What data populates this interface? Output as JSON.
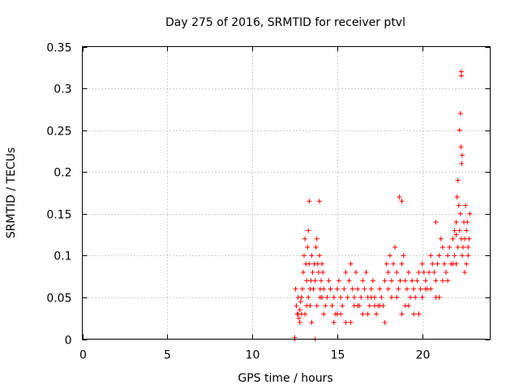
{
  "chart_data": {
    "type": "scatter",
    "title": "Day 275 of 2016, SRMTID for receiver ptvl",
    "xlabel": "GPS time / hours",
    "ylabel": "SRMTID / TECUs",
    "xlim": [
      0,
      24
    ],
    "ylim": [
      0,
      0.35
    ],
    "xticks": [
      0,
      5,
      10,
      15,
      20
    ],
    "xtick_labels": [
      "0",
      "5",
      "10",
      "15",
      "20"
    ],
    "yticks": [
      0,
      0.05,
      0.1,
      0.15,
      0.2,
      0.25,
      0.3,
      0.35
    ],
    "ytick_labels": [
      "0",
      "0.05",
      "0.1",
      "0.15",
      "0.2",
      "0.25",
      "0.3",
      "0.35"
    ],
    "grid": true,
    "marker": "+",
    "series": [
      {
        "name": "SRMTID",
        "color": "#ff0000",
        "x": [
          12.5,
          12.5,
          12.55,
          12.6,
          12.65,
          12.7,
          12.75,
          12.8,
          12.85,
          12.9,
          12.95,
          13.0,
          13.05,
          13.1,
          13.15,
          13.2,
          13.25,
          13.3,
          13.35,
          13.4,
          13.45,
          13.5,
          13.55,
          13.6,
          13.65,
          13.7,
          13.75,
          13.8,
          13.85,
          13.9,
          13.95,
          14.0,
          14.05,
          14.1,
          14.15,
          14.2,
          14.3,
          14.4,
          14.5,
          14.6,
          14.7,
          14.8,
          14.9,
          15.0,
          15.1,
          15.2,
          15.3,
          15.4,
          15.5,
          15.6,
          15.7,
          15.8,
          15.9,
          16.0,
          16.1,
          16.2,
          16.3,
          16.4,
          16.5,
          16.6,
          16.7,
          16.8,
          16.9,
          17.0,
          17.1,
          17.2,
          17.3,
          17.4,
          17.5,
          17.6,
          17.7,
          17.8,
          17.9,
          18.0,
          18.1,
          18.2,
          18.3,
          18.4,
          18.5,
          18.6,
          18.7,
          18.8,
          18.9,
          19.0,
          19.1,
          19.2,
          19.3,
          19.4,
          19.5,
          19.6,
          19.7,
          19.8,
          19.9,
          20.0,
          20.1,
          20.2,
          20.3,
          20.4,
          20.5,
          20.6,
          20.7,
          20.8,
          20.9,
          21.0,
          21.1,
          21.2,
          21.3,
          21.4,
          21.5,
          21.6,
          21.7,
          21.8,
          21.9,
          22.0,
          22.05,
          22.1,
          22.15,
          22.2,
          22.25,
          22.3,
          22.35,
          22.4,
          22.45,
          22.5,
          22.55,
          22.6,
          22.65,
          22.7,
          22.75,
          22.8,
          13.7,
          13.95,
          13.35,
          18.65,
          18.8,
          20.8,
          22.3,
          22.3,
          22.25,
          22.2,
          22.28,
          22.32,
          22.35,
          21.9,
          22.0,
          22.1,
          12.7,
          12.8,
          13.2,
          13.3,
          13.4,
          14.0,
          14.1,
          14.6,
          15.0,
          15.5,
          16.0,
          16.5,
          17.0,
          17.5,
          18.0,
          18.5,
          19.0,
          19.5,
          20.0,
          20.5,
          21.0,
          21.5,
          22.0,
          22.5,
          22.7,
          22.6,
          12.9,
          13.1,
          13.5,
          13.8,
          14.2,
          14.8,
          15.2,
          15.8,
          16.2,
          16.8,
          17.2,
          17.8,
          18.2,
          18.8,
          19.2,
          19.8,
          20.2,
          20.8,
          21.2,
          21.8
        ],
        "y": [
          0.0,
          0.002,
          0.06,
          0.04,
          0.03,
          0.05,
          0.025,
          0.035,
          0.045,
          0.03,
          0.06,
          0.08,
          0.1,
          0.12,
          0.09,
          0.07,
          0.11,
          0.13,
          0.09,
          0.06,
          0.07,
          0.1,
          0.08,
          0.06,
          0.09,
          0.07,
          0.11,
          0.12,
          0.09,
          0.08,
          0.1,
          0.06,
          0.07,
          0.05,
          0.08,
          0.06,
          0.04,
          0.05,
          0.07,
          0.06,
          0.04,
          0.05,
          0.03,
          0.06,
          0.07,
          0.05,
          0.04,
          0.06,
          0.08,
          0.05,
          0.07,
          0.09,
          0.06,
          0.05,
          0.08,
          0.06,
          0.04,
          0.05,
          0.07,
          0.06,
          0.08,
          0.05,
          0.04,
          0.06,
          0.07,
          0.05,
          0.03,
          0.04,
          0.06,
          0.05,
          0.04,
          0.07,
          0.09,
          0.08,
          0.1,
          0.07,
          0.09,
          0.11,
          0.08,
          0.06,
          0.07,
          0.09,
          0.1,
          0.07,
          0.06,
          0.08,
          0.05,
          0.07,
          0.06,
          0.05,
          0.07,
          0.08,
          0.06,
          0.09,
          0.08,
          0.07,
          0.06,
          0.08,
          0.1,
          0.09,
          0.08,
          0.07,
          0.09,
          0.1,
          0.12,
          0.11,
          0.09,
          0.08,
          0.1,
          0.11,
          0.09,
          0.12,
          0.1,
          0.14,
          0.17,
          0.19,
          0.16,
          0.13,
          0.15,
          0.12,
          0.1,
          0.11,
          0.14,
          0.12,
          0.16,
          0.13,
          0.14,
          0.11,
          0.12,
          0.15,
          0.0,
          0.165,
          0.165,
          0.17,
          0.165,
          0.14,
          0.32,
          0.315,
          0.27,
          0.25,
          0.23,
          0.21,
          0.22,
          0.13,
          0.125,
          0.11,
          0.03,
          0.02,
          0.04,
          0.05,
          0.04,
          0.05,
          0.09,
          0.06,
          0.03,
          0.02,
          0.04,
          0.03,
          0.05,
          0.04,
          0.06,
          0.05,
          0.04,
          0.03,
          0.05,
          0.06,
          0.05,
          0.07,
          0.09,
          0.08,
          0.1,
          0.09,
          0.05,
          0.03,
          0.02,
          0.04,
          0.03,
          0.02,
          0.03,
          0.02,
          0.04,
          0.03,
          0.04,
          0.02,
          0.05,
          0.03,
          0.04,
          0.03,
          0.06,
          0.05,
          0.07,
          0.09
        ]
      }
    ]
  }
}
